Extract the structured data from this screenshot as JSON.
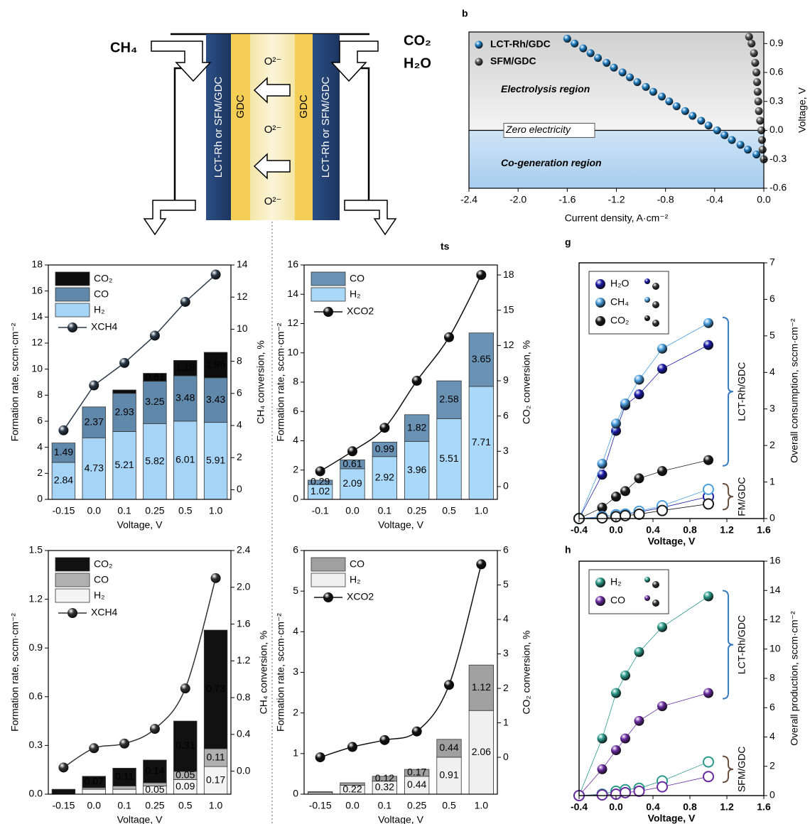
{
  "diagram": {
    "inlet_left": "CH₄",
    "inlet_right": [
      "CO₂",
      "H₂O"
    ],
    "electrode_left": "LCT-Rh or SFM/GDC",
    "electrode_right": "LCT-Rh or SFM/GDC",
    "electrolyte_left": "GDC",
    "electrolyte_right": "GDC",
    "ions": [
      "O²⁻",
      "O²⁻",
      "O²⁻"
    ]
  },
  "chart_data": [
    {
      "type": "scatter",
      "panel_label": "b",
      "xlabel": "Current density, A·cm⁻²",
      "ylabel": "Voltage, V",
      "xlim": [
        -2.4,
        0
      ],
      "ylim": [
        -0.6,
        1.02
      ],
      "xticks": [
        -2.4,
        {
          "value": -2,
          "label": "-2.0"
        },
        -1.6,
        -1.2,
        -0.8,
        -0.4,
        {
          "value": 0,
          "label": "0.0"
        }
      ],
      "yticks": [
        -0.6,
        -0.3,
        {
          "value": 0,
          "label": "0.0"
        },
        0.3,
        0.6,
        0.9
      ],
      "annotations": [
        "Electrolysis region",
        "Zero electricity",
        "Co-generation region"
      ],
      "series": [
        {
          "name": "LCT-Rh/GDC",
          "color": "#1f7fc4",
          "x": [
            -1.6,
            -1.54,
            -1.47,
            -1.41,
            -1.35,
            -1.28,
            -1.22,
            -1.15,
            -1.09,
            -1.03,
            -0.96,
            -0.9,
            -0.83,
            -0.77,
            -0.71,
            -0.64,
            -0.58,
            -0.51,
            -0.45,
            -0.38,
            -0.32,
            -0.26,
            -0.19,
            -0.13,
            -0.06,
            0
          ],
          "values": [
            0.95,
            0.9,
            0.85,
            0.8,
            0.75,
            0.7,
            0.65,
            0.6,
            0.55,
            0.5,
            0.45,
            0.4,
            0.35,
            0.3,
            0.25,
            0.2,
            0.15,
            0.1,
            0.05,
            0,
            -0.05,
            -0.1,
            -0.15,
            -0.2,
            -0.25,
            -0.3
          ]
        },
        {
          "name": "SFM/GDC",
          "color": "#555555",
          "x": [
            -0.12,
            -0.1,
            -0.08,
            -0.07,
            -0.06,
            -0.055,
            -0.05,
            -0.045,
            -0.04,
            -0.03,
            -0.02,
            -0.015,
            -0.01,
            0
          ],
          "values": [
            0.97,
            0.9,
            0.8,
            0.7,
            0.6,
            0.5,
            0.4,
            0.3,
            0.2,
            0.1,
            0,
            -0.1,
            -0.2,
            -0.3
          ]
        }
      ]
    },
    {
      "type": "stacked_bar",
      "xlabel": "Voltage, V",
      "ylabel": "Formation rate, sccm·cm⁻²",
      "y2label": "CH₄ conversion, %",
      "categories": [
        "-0.15",
        "0.0",
        "0.1",
        "0.25",
        "0.5",
        "1.0"
      ],
      "ylim": [
        0,
        18
      ],
      "yticks": [
        0,
        2,
        4,
        6,
        8,
        10,
        12,
        14,
        16,
        18
      ],
      "y2lim": [
        -0.6,
        14
      ],
      "y2ticks": [
        0,
        2,
        4,
        6,
        8,
        10,
        12,
        14
      ],
      "smooth": false,
      "series": [
        {
          "name": "H₂",
          "color": "#a6d4f7",
          "values": [
            2.84,
            4.73,
            5.21,
            5.82,
            6.01,
            5.91
          ],
          "value_labels": [
            "2.84",
            "4.73",
            "5.21",
            "5.82",
            "6.01",
            "5.91"
          ]
        },
        {
          "name": "CO",
          "color": "#5f88aa",
          "values": [
            1.49,
            2.37,
            2.93,
            3.25,
            3.48,
            3.43
          ],
          "value_labels": [
            "1.49",
            "2.37",
            "2.93",
            "3.25",
            "3.48",
            "3.43"
          ]
        },
        {
          "name": "CO₂",
          "color": "#0d0d0d",
          "values": [
            0,
            0,
            0.26,
            0.61,
            1.18,
            1.95
          ],
          "value_labels": [
            null,
            null,
            null,
            "0.61",
            "1.18",
            "1.95"
          ]
        },
        {
          "name": "XCH4",
          "color": "#2a3a4a",
          "axis": "y2",
          "values": [
            3.7,
            6.5,
            7.9,
            9.6,
            11.7,
            13.4
          ]
        }
      ]
    },
    {
      "type": "stacked_bar",
      "panel_label": "ts",
      "xlabel": "Voltage, V",
      "ylabel": "Formation rate, sccm·cm⁻²",
      "y2label": "CO₂ conversion, %",
      "categories": [
        "-0.1",
        "0.0",
        "0.1",
        "0.25",
        "0.5",
        "1.0"
      ],
      "ylim": [
        0,
        16
      ],
      "yticks": [
        0,
        2,
        4,
        6,
        8,
        10,
        12,
        14,
        16
      ],
      "y2lim": [
        -1.09,
        18.85
      ],
      "y2ticks": [
        0,
        3,
        6,
        9,
        12,
        15,
        18
      ],
      "smooth": true,
      "series": [
        {
          "name": "H₂",
          "color": "#a9d8f8",
          "values": [
            1.02,
            2.09,
            2.92,
            3.96,
            5.51,
            7.71
          ],
          "value_labels": [
            "1.02",
            "2.09",
            "2.92",
            "3.96",
            "5.51",
            "7.71"
          ]
        },
        {
          "name": "CO",
          "color": "#6a92b5",
          "values": [
            0.29,
            0.61,
            0.99,
            1.82,
            2.58,
            3.65
          ],
          "value_labels": [
            "0.29",
            "0.61",
            "0.99",
            "1.82",
            "2.58",
            "3.65"
          ]
        },
        {
          "name": "XCO2",
          "color": "#111111",
          "axis": "y2",
          "values": [
            1.3,
            3.0,
            5.0,
            9.0,
            12.7,
            18.0
          ]
        }
      ]
    },
    {
      "type": "stacked_bar",
      "xlabel": "Voltage, V",
      "ylabel": "Formation rate, sccm·cm⁻²",
      "y2label": "CH₄ conversion, %",
      "categories": [
        "-0.15",
        "0.0",
        "0.1",
        "0.25",
        "0.5",
        "1.0"
      ],
      "ylim": [
        0,
        1.5
      ],
      "yticks": [
        {
          "value": 0,
          "label": "0.0"
        },
        0.3,
        0.6,
        0.9,
        1.2,
        1.5
      ],
      "y2lim": [
        -0.25,
        2.4
      ],
      "y2ticks": [
        {
          "value": 0,
          "label": "0.0"
        },
        0.4,
        0.8,
        1.2,
        1.6,
        {
          "value": 2,
          "label": "2.0"
        },
        2.4
      ],
      "smooth": true,
      "series": [
        {
          "name": "H₂",
          "color": "#f4f4f4",
          "values": [
            0,
            0.03,
            0.03,
            0.05,
            0.09,
            0.17
          ],
          "value_labels": [
            null,
            null,
            null,
            "0.05",
            "0.09",
            "0.17"
          ]
        },
        {
          "name": "CO",
          "color": "#b0b0b0",
          "values": [
            0,
            0.01,
            0.02,
            0.02,
            0.05,
            0.11
          ],
          "value_labels": [
            null,
            null,
            null,
            null,
            "0.05",
            "0.11"
          ]
        },
        {
          "name": "CO₂",
          "color": "#111111",
          "values": [
            0.03,
            0.07,
            0.11,
            0.14,
            0.31,
            0.73
          ],
          "value_labels": [
            null,
            "0.07",
            "0.11",
            "0.14",
            "0.31",
            "0.73"
          ]
        },
        {
          "name": "XCH4",
          "color": "#333333",
          "axis": "y2",
          "values": [
            0.04,
            0.25,
            0.3,
            0.46,
            0.9,
            2.1
          ]
        }
      ]
    },
    {
      "type": "stacked_bar",
      "xlabel": "Voltage, V",
      "ylabel": "Formation rate, sccm·cm⁻²",
      "y2label": "CO₂ conversion, %",
      "categories": [
        "-0.15",
        "0.0",
        "0.1",
        "0.25",
        "0.5",
        "1.0"
      ],
      "ylim": [
        0,
        6
      ],
      "yticks": [
        0,
        1,
        2,
        3,
        4,
        5,
        6
      ],
      "y2lim": [
        -1.07,
        6
      ],
      "y2ticks": [
        0,
        1,
        2,
        3,
        4,
        5,
        6
      ],
      "smooth": true,
      "series": [
        {
          "name": "H₂",
          "color": "#f0f0f0",
          "values": [
            0.04,
            0.22,
            0.32,
            0.44,
            0.91,
            2.06
          ],
          "value_labels": [
            null,
            "0.22",
            "0.32",
            "0.44",
            "0.91",
            "2.06"
          ]
        },
        {
          "name": "CO",
          "color": "#a0a0a0",
          "values": [
            0.02,
            0.06,
            0.12,
            0.17,
            0.44,
            1.12
          ],
          "value_labels": [
            null,
            null,
            "0.12",
            "0.17",
            "0.44",
            "1.12"
          ]
        },
        {
          "name": "XCO2",
          "color": "#111111",
          "axis": "y2",
          "values": [
            0,
            0.3,
            0.5,
            0.75,
            2.1,
            5.6
          ]
        }
      ]
    },
    {
      "type": "line",
      "panel_label": "g",
      "xlabel": "Voltage, V",
      "ylabel": "Overall consumption, sccm·cm⁻²",
      "x": [
        -0.4,
        -0.15,
        0,
        0.1,
        0.25,
        0.5,
        1.0
      ],
      "xlim": [
        -0.4,
        1.6
      ],
      "xticks": [
        -0.4,
        {
          "value": 0,
          "label": "0.0"
        },
        0.4,
        0.8,
        1.2,
        1.6
      ],
      "ylim": [
        0,
        7
      ],
      "yticks": [
        0,
        1,
        2,
        3,
        4,
        5,
        6,
        7
      ],
      "groups": [
        {
          "label": "LCT-Rh/GDC",
          "color": "#3a7cc0",
          "filled": true,
          "series": [
            {
              "name": "H₂O",
              "color": "#1a1aa8",
              "values": [
                0,
                1.2,
                2.4,
                3.1,
                3.4,
                4.1,
                4.75
              ]
            },
            {
              "name": "CH₄",
              "color": "#4a9fe0",
              "values": [
                0,
                1.5,
                2.6,
                3.15,
                3.8,
                4.65,
                5.35
              ]
            },
            {
              "name": "CO₂",
              "color": "#1a1a1a",
              "values": [
                0,
                0.3,
                0.6,
                0.75,
                1.1,
                1.3,
                1.6
              ]
            }
          ]
        },
        {
          "label": "FM/GDC",
          "color": "#555555",
          "filled": false,
          "series": [
            {
              "color": "#1a1aa8",
              "values": [
                0,
                0.05,
                0.1,
                0.12,
                0.18,
                0.3,
                0.6
              ]
            },
            {
              "color": "#4a9fe0",
              "values": [
                0,
                0.05,
                0.1,
                0.12,
                0.2,
                0.35,
                0.8
              ]
            },
            {
              "color": "#1a1a1a",
              "values": [
                0,
                0.02,
                0.05,
                0.08,
                0.12,
                0.22,
                0.4
              ]
            }
          ]
        }
      ]
    },
    {
      "type": "line",
      "panel_label": "h",
      "xlabel": "Voltage, V",
      "ylabel": "Overall production, sccm·cm⁻²",
      "x": [
        -0.4,
        -0.15,
        0,
        0.1,
        0.25,
        0.5,
        1.0
      ],
      "xlim": [
        -0.4,
        1.6
      ],
      "xticks": [
        -0.4,
        {
          "value": 0,
          "label": "0.0"
        },
        0.4,
        0.8,
        1.2,
        1.6
      ],
      "ylim": [
        0,
        16
      ],
      "yticks": [
        0,
        2,
        4,
        6,
        8,
        10,
        12,
        14,
        16
      ],
      "groups": [
        {
          "label": "LCT-Rh/GDC",
          "color": "#3a7cc0",
          "filled": true,
          "series": [
            {
              "name": "H₂",
              "color": "#2a9a8a",
              "values": [
                0,
                3.9,
                7.0,
                8.2,
                9.8,
                11.5,
                13.6
              ]
            },
            {
              "name": "CO",
              "color": "#6a2aa0",
              "values": [
                0,
                1.8,
                3.1,
                3.9,
                5.1,
                6.1,
                7.0
              ]
            }
          ]
        },
        {
          "label": "SFM/GDC",
          "color": "#555555",
          "filled": false,
          "series": [
            {
              "color": "#2a9a8a",
              "values": [
                0,
                0.1,
                0.3,
                0.4,
                0.5,
                1.0,
                2.3
              ]
            },
            {
              "color": "#6a2aa0",
              "values": [
                0,
                0.05,
                0.1,
                0.2,
                0.3,
                0.6,
                1.3
              ]
            }
          ]
        }
      ]
    }
  ]
}
